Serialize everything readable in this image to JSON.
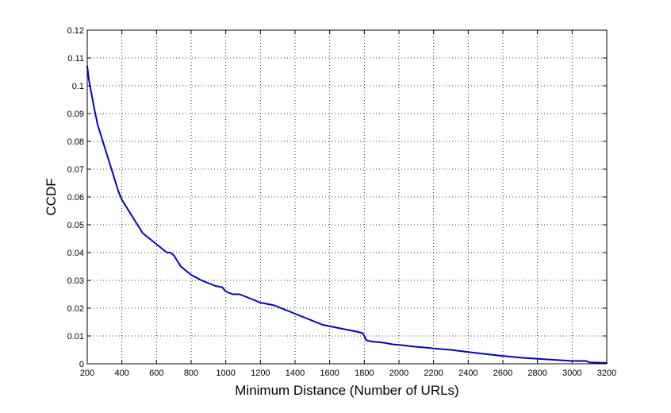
{
  "chart_data": {
    "type": "line",
    "title": "",
    "xlabel": "Minimum Distance (Number of URLs)",
    "ylabel": "CCDF",
    "xlim": [
      200,
      3200
    ],
    "ylim": [
      0,
      0.12
    ],
    "xticks": [
      200,
      400,
      600,
      800,
      1000,
      1200,
      1400,
      1600,
      1800,
      2000,
      2200,
      2400,
      2600,
      2800,
      3000,
      3200
    ],
    "yticks": [
      0,
      0.01,
      0.02,
      0.03,
      0.04,
      0.05,
      0.06,
      0.07,
      0.08,
      0.09,
      0.1,
      0.11,
      0.12
    ],
    "ytick_labels": [
      "0",
      "0.01",
      "0.02",
      "0.03",
      "0.04",
      "0.05",
      "0.06",
      "0.07",
      "0.08",
      "0.09",
      "0.1",
      "0.11",
      "0.12"
    ],
    "grid": true,
    "series": [
      {
        "color": "#0000cc",
        "x": [
          200,
          210,
          225,
          240,
          260,
          280,
          300,
          320,
          340,
          360,
          380,
          400,
          420,
          440,
          460,
          480,
          500,
          520,
          540,
          560,
          580,
          600,
          620,
          640,
          660,
          680,
          700,
          720,
          740,
          760,
          780,
          800,
          830,
          860,
          900,
          940,
          980,
          1000,
          1040,
          1080,
          1120,
          1160,
          1200,
          1240,
          1280,
          1320,
          1360,
          1400,
          1440,
          1480,
          1520,
          1560,
          1600,
          1640,
          1680,
          1720,
          1760,
          1790,
          1800,
          1810,
          1840,
          1880,
          1920,
          1960,
          2000,
          2080,
          2160,
          2200,
          2300,
          2400,
          2500,
          2600,
          2700,
          2800,
          2900,
          3000,
          3080,
          3100,
          3200
        ],
        "y": [
          0.107,
          0.102,
          0.097,
          0.092,
          0.086,
          0.082,
          0.078,
          0.074,
          0.07,
          0.066,
          0.062,
          0.059,
          0.057,
          0.055,
          0.053,
          0.051,
          0.049,
          0.047,
          0.046,
          0.045,
          0.044,
          0.043,
          0.042,
          0.041,
          0.04,
          0.04,
          0.039,
          0.037,
          0.035,
          0.034,
          0.033,
          0.032,
          0.031,
          0.03,
          0.029,
          0.028,
          0.0275,
          0.026,
          0.025,
          0.025,
          0.024,
          0.023,
          0.022,
          0.0215,
          0.021,
          0.02,
          0.019,
          0.018,
          0.017,
          0.016,
          0.015,
          0.014,
          0.0135,
          0.013,
          0.0125,
          0.012,
          0.0115,
          0.011,
          0.01,
          0.0085,
          0.008,
          0.0078,
          0.0075,
          0.007,
          0.0068,
          0.0062,
          0.0058,
          0.0055,
          0.005,
          0.0042,
          0.0035,
          0.0028,
          0.0022,
          0.0018,
          0.0014,
          0.001,
          0.001,
          0.0005,
          0.0003
        ]
      }
    ]
  }
}
